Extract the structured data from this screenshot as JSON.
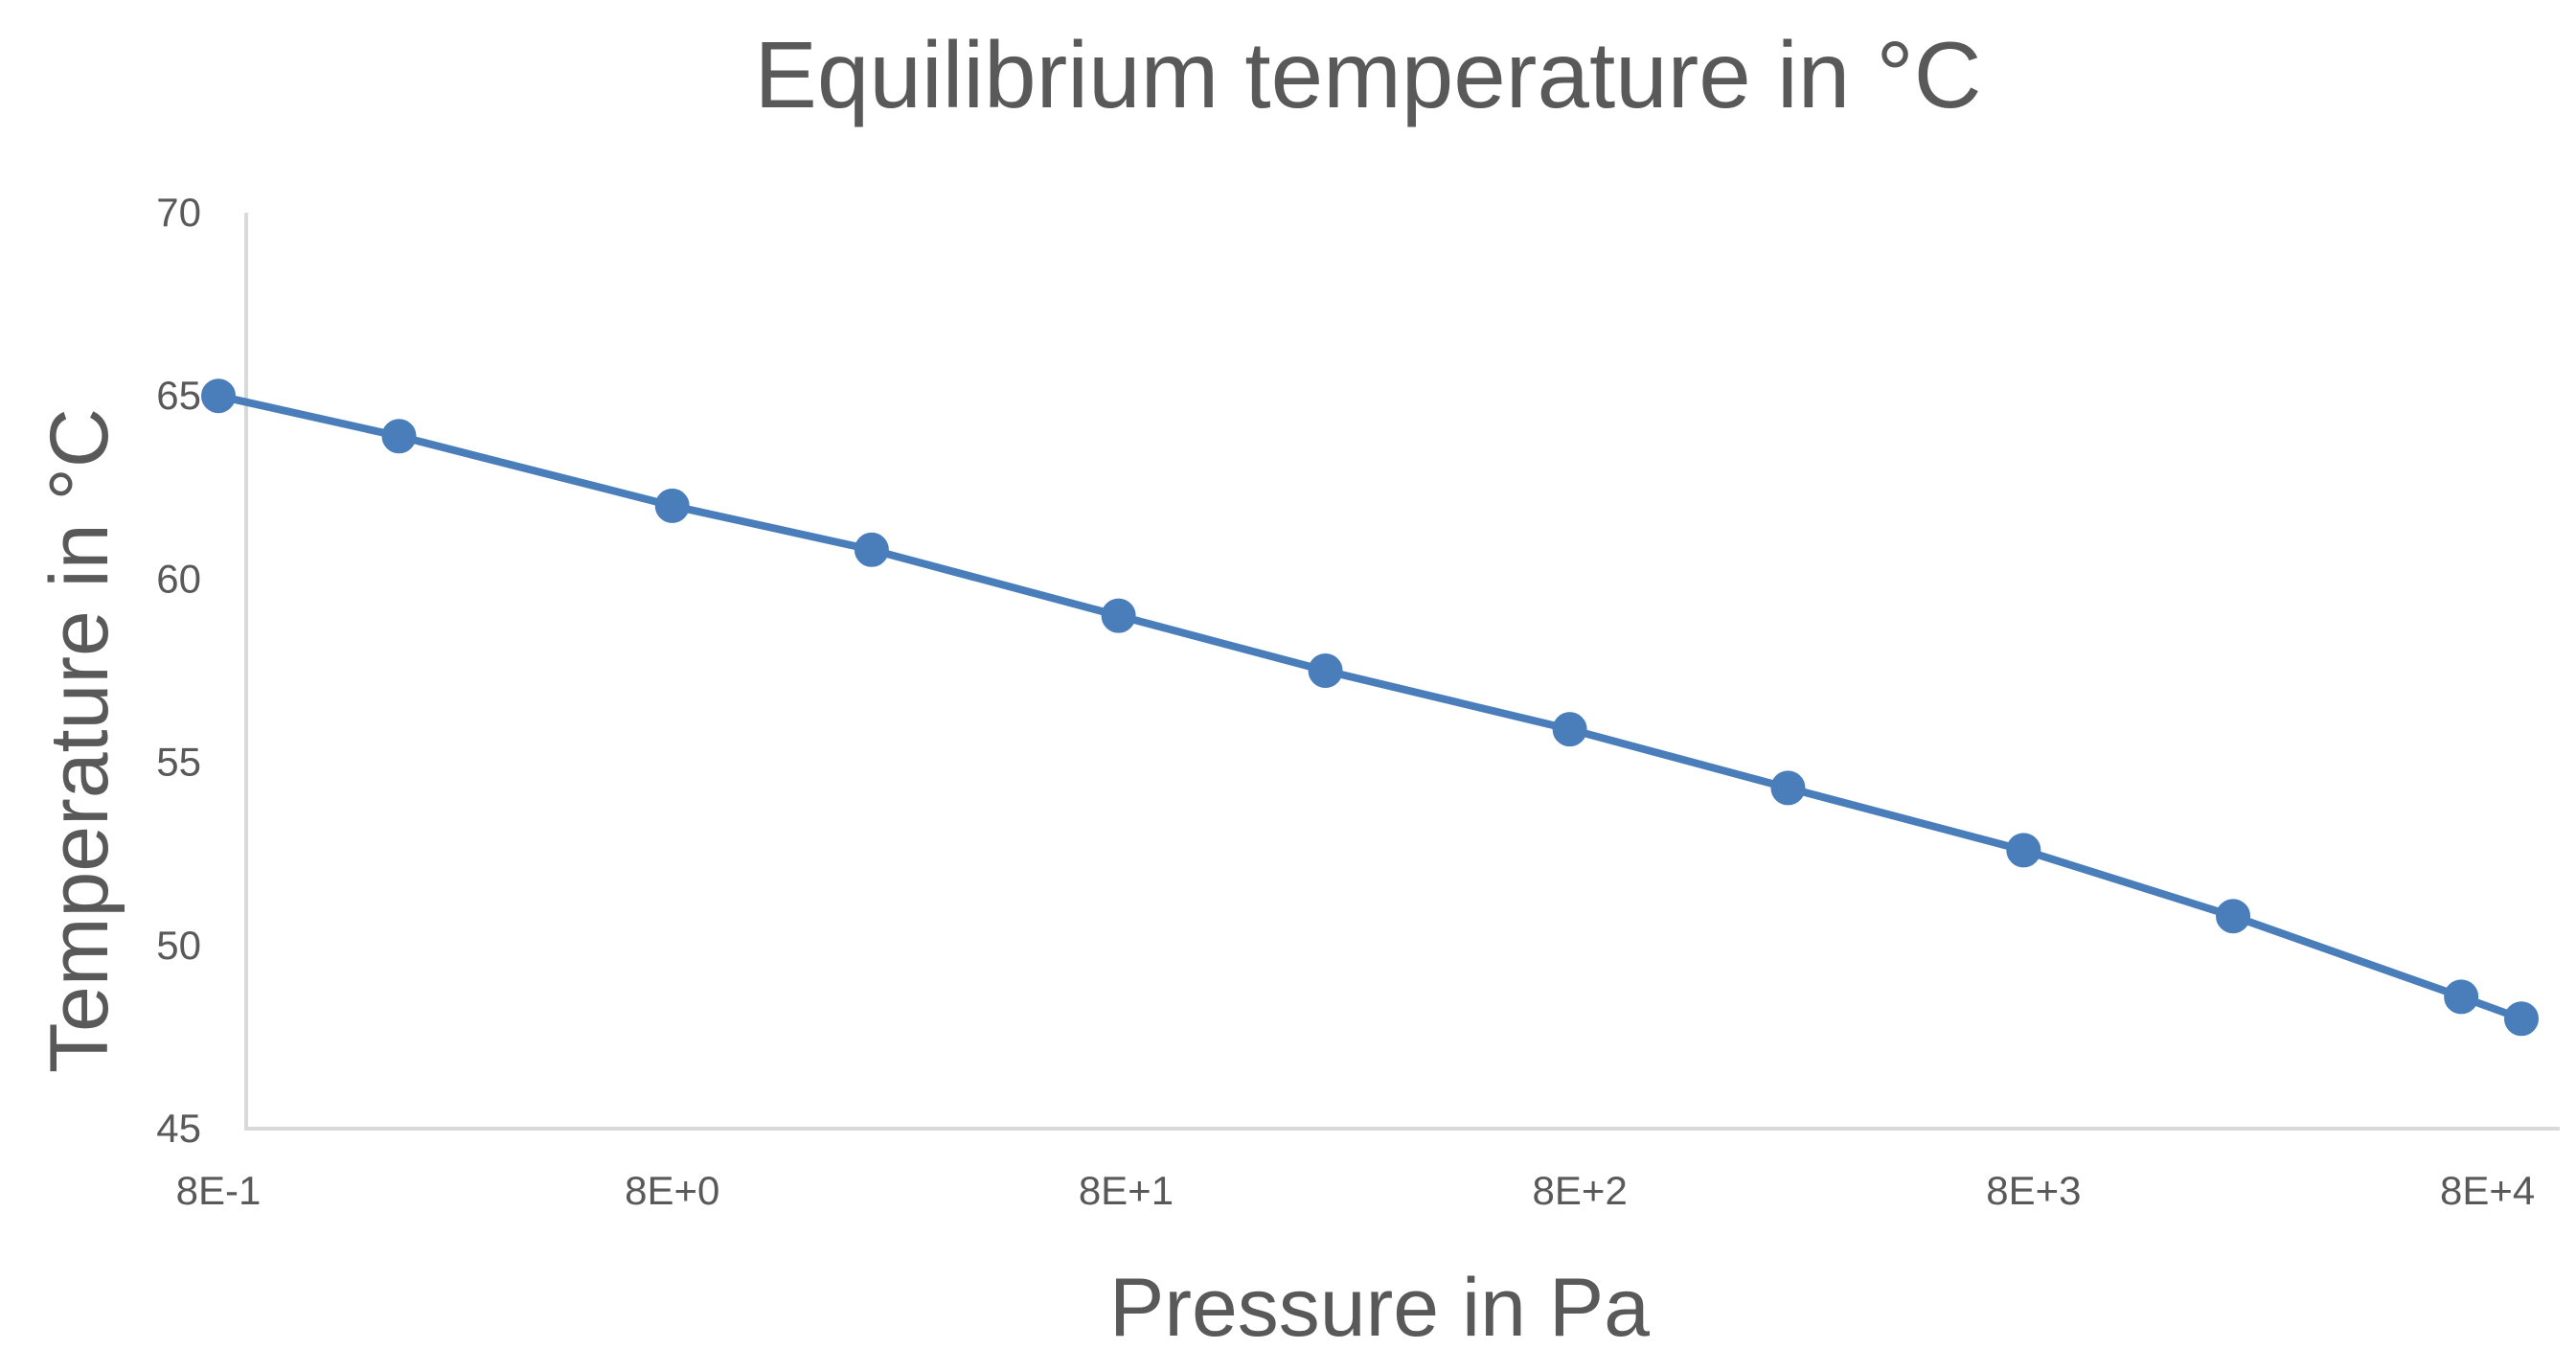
{
  "chart_data": {
    "type": "line",
    "title": "Equilibrium temperature in °C",
    "xlabel": "Pressure in Pa",
    "ylabel": "Temperature in °C",
    "x_scale": "log",
    "x_tick_labels": [
      "8E-1",
      "8E+0",
      "8E+1",
      "8E+2",
      "8E+3",
      "8E+4"
    ],
    "x_tick_values": [
      0.8,
      8,
      80,
      800,
      8000,
      80000
    ],
    "xlim": [
      0.8,
      95000
    ],
    "y_ticks": [
      45,
      50,
      55,
      60,
      65,
      70
    ],
    "ylim": [
      45,
      70
    ],
    "grid": false,
    "legend": "none",
    "series": [
      {
        "name": "Equilibrium temperature",
        "color": "#4a7ebb",
        "marker": "circle",
        "x": [
          0.8,
          2.0,
          8,
          22,
          77,
          220,
          760,
          2300,
          7600,
          22000,
          70000,
          95000
        ],
        "y": [
          65.0,
          63.9,
          62.0,
          60.8,
          59.0,
          57.5,
          55.9,
          54.3,
          52.6,
          50.8,
          48.6,
          48.0
        ]
      }
    ]
  }
}
